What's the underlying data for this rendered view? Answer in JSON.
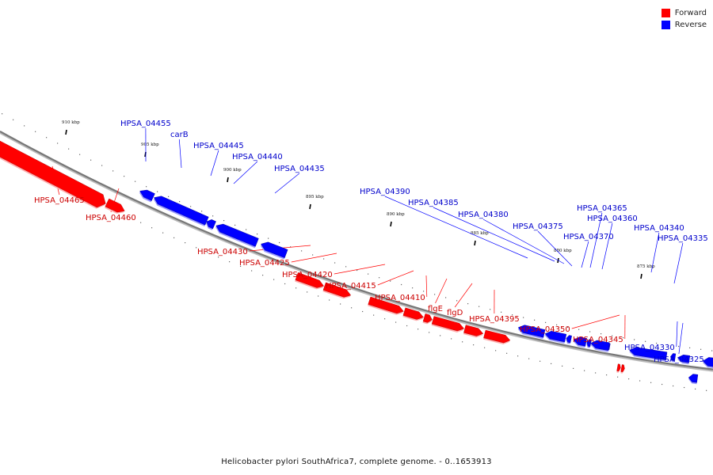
{
  "legend": {
    "forward_label": "Forward",
    "reverse_label": "Reverse",
    "forward_color": "#ff0000",
    "reverse_color": "#0000ff"
  },
  "caption": "Helicobacter pylori SouthAfrica7, complete genome. - 0..1653913",
  "ticks": [
    "910 kbp",
    "905 kbp",
    "900 kbp",
    "895 kbp",
    "890 kbp",
    "885 kbp",
    "880 kbp",
    "875 kbp"
  ],
  "genes": [
    {
      "name": "HPSA_04465",
      "strand": "forward"
    },
    {
      "name": "HPSA_04460",
      "strand": "forward"
    },
    {
      "name": "HPSA_04455",
      "strand": "reverse"
    },
    {
      "name": "carB",
      "strand": "reverse"
    },
    {
      "name": "HPSA_04445",
      "strand": "reverse"
    },
    {
      "name": "HPSA_04440",
      "strand": "reverse"
    },
    {
      "name": "HPSA_04435",
      "strand": "reverse"
    },
    {
      "name": "HPSA_04430",
      "strand": "forward"
    },
    {
      "name": "HPSA_04425",
      "strand": "forward"
    },
    {
      "name": "HPSA_04420",
      "strand": "forward"
    },
    {
      "name": "HPSA_04415",
      "strand": "forward"
    },
    {
      "name": "HPSA_04410",
      "strand": "forward"
    },
    {
      "name": "flgE",
      "strand": "forward"
    },
    {
      "name": "flgD",
      "strand": "forward"
    },
    {
      "name": "HPSA_04395",
      "strand": "forward"
    },
    {
      "name": "HPSA_04390",
      "strand": "reverse"
    },
    {
      "name": "HPSA_04385",
      "strand": "reverse"
    },
    {
      "name": "HPSA_04380",
      "strand": "reverse"
    },
    {
      "name": "HPSA_04375",
      "strand": "reverse"
    },
    {
      "name": "HPSA_04370",
      "strand": "reverse"
    },
    {
      "name": "HPSA_04365",
      "strand": "reverse"
    },
    {
      "name": "HPSA_04360",
      "strand": "reverse"
    },
    {
      "name": "HPSA_04350",
      "strand": "forward"
    },
    {
      "name": "HPSA_04345",
      "strand": "forward"
    },
    {
      "name": "HPSA_04340",
      "strand": "reverse"
    },
    {
      "name": "HPSA_04335",
      "strand": "reverse"
    },
    {
      "name": "HPSA_04330",
      "strand": "reverse"
    },
    {
      "name": "HPSA_04325",
      "strand": "reverse"
    }
  ]
}
